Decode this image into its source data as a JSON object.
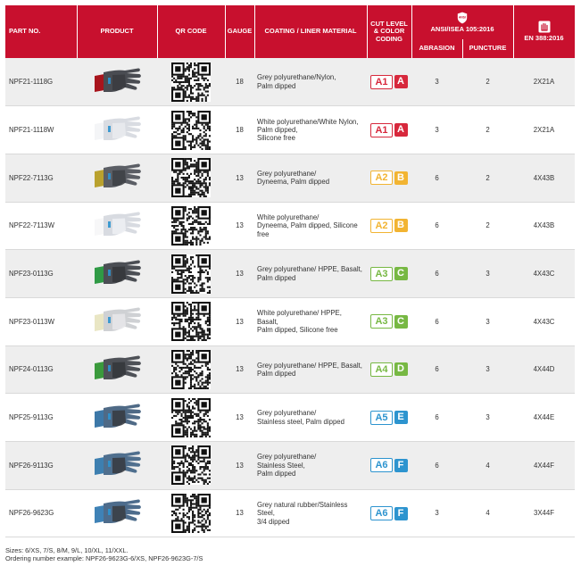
{
  "headers": {
    "part_no": "PART NO.",
    "product": "PRODUCT",
    "qr_code": "QR CODE",
    "gauge": "GAUGE",
    "coating": "COATING / LINER MATERIAL",
    "cut_level": "CUT LEVEL & COLOR CODING",
    "ansi_icon_text": "ANSI",
    "ansi": "ANSI/ISEA 105:2016",
    "abrasion": "ABRASION",
    "puncture": "PUNCTURE",
    "en": "EN 388:2016",
    "ansi_icon": "shield-icon",
    "en_icon": "hand-mark-icon"
  },
  "colors": {
    "header_red": "#c8102e",
    "level_A": "#d7283c",
    "level_B": "#f2b432",
    "level_C": "#77b843",
    "level_D": "#77b843",
    "level_E": "#2d94cf",
    "level_F": "#2d94cf"
  },
  "rows": [
    {
      "part": "NPF21-1118G",
      "gauge": "18",
      "coating": [
        "Grey polyurethane/Nylon,",
        "Palm dipped"
      ],
      "cut_code": "A1",
      "cut_letter": "A",
      "cut_color": "#d7283c",
      "abrasion": "3",
      "puncture": "2",
      "en": "2X21A",
      "glove": {
        "palm": "#3a3b3f",
        "back": "#4a4c52",
        "cuff": "#a8141c"
      }
    },
    {
      "part": "NPF21-1118W",
      "gauge": "18",
      "coating": [
        "White polyurethane/White Nylon,",
        "Palm dipped,",
        "Silicone free"
      ],
      "cut_code": "A1",
      "cut_letter": "A",
      "cut_color": "#d7283c",
      "abrasion": "3",
      "puncture": "2",
      "en": "2X21A",
      "glove": {
        "palm": "#e9ebee",
        "back": "#d9dce2",
        "cuff": "#f4f5f7"
      }
    },
    {
      "part": "NPF22-7113G",
      "gauge": "13",
      "coating": [
        "Grey polyurethane/",
        "Dyneema, Palm dipped"
      ],
      "cut_code": "A2",
      "cut_letter": "B",
      "cut_color": "#f2b432",
      "abrasion": "6",
      "puncture": "2",
      "en": "4X43B",
      "glove": {
        "palm": "#3d3f44",
        "back": "#5b5e65",
        "cuff": "#b9a12e"
      }
    },
    {
      "part": "NPF22-7113W",
      "gauge": "13",
      "coating": [
        "White polyurethane/",
        "Dyneema, Palm dipped, Silicone free"
      ],
      "cut_code": "A2",
      "cut_letter": "B",
      "cut_color": "#f2b432",
      "abrasion": "6",
      "puncture": "2",
      "en": "4X43B",
      "glove": {
        "palm": "#eef0f3",
        "back": "#d8dbe1",
        "cuff": "#f7f7f8"
      }
    },
    {
      "part": "NPF23-0113G",
      "gauge": "13",
      "coating": [
        "Grey polyurethane/ HPPE, Basalt,",
        "Palm dipped"
      ],
      "cut_code": "A3",
      "cut_letter": "C",
      "cut_color": "#77b843",
      "abrasion": "6",
      "puncture": "3",
      "en": "4X43C",
      "glove": {
        "palm": "#34363a",
        "back": "#4b4e54",
        "cuff": "#2f9a45"
      }
    },
    {
      "part": "NPF23-0113W",
      "gauge": "13",
      "coating": [
        "White polyurethane/ HPPE, Basalt,",
        "Palm dipped, Silicone free"
      ],
      "cut_code": "A3",
      "cut_letter": "C",
      "cut_color": "#77b843",
      "abrasion": "6",
      "puncture": "3",
      "en": "4X43C",
      "glove": {
        "palm": "#e7e8ea",
        "back": "#cfd1d4",
        "cuff": "#e9e6c4"
      }
    },
    {
      "part": "NPF24-0113G",
      "gauge": "13",
      "coating": [
        "Grey polyurethane/ HPPE, Basalt,",
        "Palm dipped"
      ],
      "cut_code": "A4",
      "cut_letter": "D",
      "cut_color": "#77b843",
      "abrasion": "6",
      "puncture": "3",
      "en": "4X44D",
      "glove": {
        "palm": "#34363a",
        "back": "#4e5157",
        "cuff": "#3a9a3c"
      }
    },
    {
      "part": "NPF25-9113G",
      "gauge": "13",
      "coating": [
        "Grey polyurethane/",
        "Stainless steel, Palm dipped"
      ],
      "cut_code": "A5",
      "cut_letter": "E",
      "cut_color": "#2d94cf",
      "abrasion": "6",
      "puncture": "3",
      "en": "4X44E",
      "glove": {
        "palm": "#36393f",
        "back": "#4f6a86",
        "cuff": "#3d78a8"
      }
    },
    {
      "part": "NPF26-9113G",
      "gauge": "13",
      "coating": [
        "Grey polyurethane/",
        "Stainless Steel,",
        "Palm dipped"
      ],
      "cut_code": "A6",
      "cut_letter": "F",
      "cut_color": "#2d94cf",
      "abrasion": "6",
      "puncture": "4",
      "en": "4X44F",
      "glove": {
        "palm": "#36393f",
        "back": "#4f6f8e",
        "cuff": "#3d7fb0"
      }
    },
    {
      "part": "NPF26-9623G",
      "gauge": "13",
      "coating": [
        "Grey natural rubber/Stainless Steel,",
        "3/4 dipped"
      ],
      "cut_code": "A6",
      "cut_letter": "F",
      "cut_color": "#2d94cf",
      "abrasion": "3",
      "puncture": "4",
      "en": "3X44F",
      "glove": {
        "palm": "#3a3d42",
        "back": "#4d6c8c",
        "cuff": "#3f82b6"
      }
    }
  ],
  "footer": {
    "sizes": "Sizes: 6/XS, 7/S, 8/M, 9/L, 10/XL, 11/XXL.",
    "ordering": "Ordering number example: NPF26-9623G-6/XS, NPF26-9623G-7/S"
  }
}
